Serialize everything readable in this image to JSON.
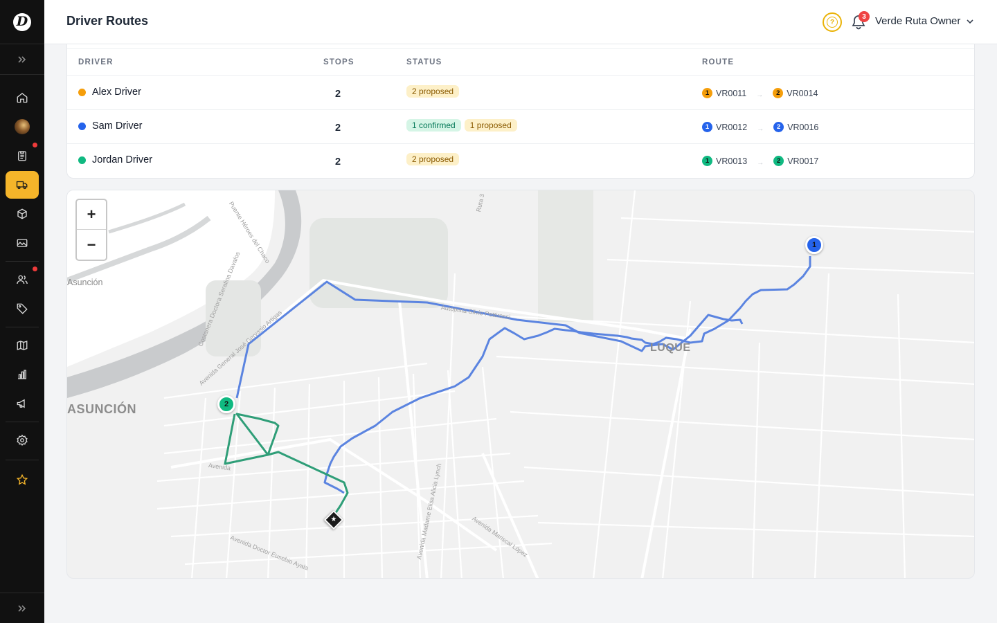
{
  "app": {
    "logo_letter": "D",
    "page_title": "Driver Routes"
  },
  "header": {
    "help_icon": "question-circle-icon",
    "notifications_count": "3",
    "user_name": "Verde Ruta Owner"
  },
  "sidebar": {
    "items": [
      {
        "icon": "home-icon"
      },
      {
        "icon": "avatar"
      },
      {
        "icon": "clipboard-icon",
        "alert": true
      },
      {
        "icon": "truck-icon",
        "active": true
      },
      {
        "icon": "box-icon"
      },
      {
        "icon": "image-icon"
      },
      {
        "icon": "users-icon",
        "alert": true
      },
      {
        "icon": "tag-icon"
      },
      {
        "icon": "map-icon"
      },
      {
        "icon": "bar-chart-icon"
      },
      {
        "icon": "megaphone-icon"
      },
      {
        "icon": "settings-icon"
      },
      {
        "icon": "star-icon"
      }
    ]
  },
  "table": {
    "columns": [
      "DRIVER",
      "STOPS",
      "STATUS",
      "ROUTE"
    ],
    "rows": [
      {
        "driver": "Alex Driver",
        "color": "#f59e0b",
        "stops": "2",
        "status": [
          {
            "label": "2 proposed",
            "type": "proposed"
          }
        ],
        "route": [
          {
            "n": "1",
            "code": "VR0011"
          },
          {
            "n": "2",
            "code": "VR0014"
          }
        ]
      },
      {
        "driver": "Sam Driver",
        "color": "#2563eb",
        "stops": "2",
        "status": [
          {
            "label": "1 confirmed",
            "type": "confirmed"
          },
          {
            "label": "1 proposed",
            "type": "proposed"
          }
        ],
        "route": [
          {
            "n": "1",
            "code": "VR0012"
          },
          {
            "n": "2",
            "code": "VR0016"
          }
        ]
      },
      {
        "driver": "Jordan Driver",
        "color": "#10b981",
        "stops": "2",
        "status": [
          {
            "label": "2 proposed",
            "type": "proposed"
          }
        ],
        "route": [
          {
            "n": "1",
            "code": "VR0013"
          },
          {
            "n": "2",
            "code": "VR0017"
          }
        ]
      }
    ]
  },
  "map": {
    "zoom_in": "+",
    "zoom_out": "−",
    "labels": {
      "luque": "LUQUE",
      "asuncion_big": "ASUNCIÓN",
      "asuncion_small": "Asunción"
    },
    "streets": [
      "Puente Héroes del Chaco",
      "Costanera Doctora Serafina Davalos",
      "Avenida General José Gervasio Artigas",
      "Autopista Silvio Pettirossi",
      "Ruta 3",
      "Avenida Madame Elisa Alicia Lynch",
      "Avenida Mariscal López",
      "Avenida Doctor Eusebio Ayala",
      "Avenida"
    ],
    "markers": [
      {
        "label": "1",
        "color": "#2563eb"
      },
      {
        "label": "2",
        "color": "#10b981"
      }
    ],
    "depot_symbol": "★",
    "route_colors": {
      "sam": "#5b84e0",
      "jordan": "#2f9e78"
    }
  }
}
